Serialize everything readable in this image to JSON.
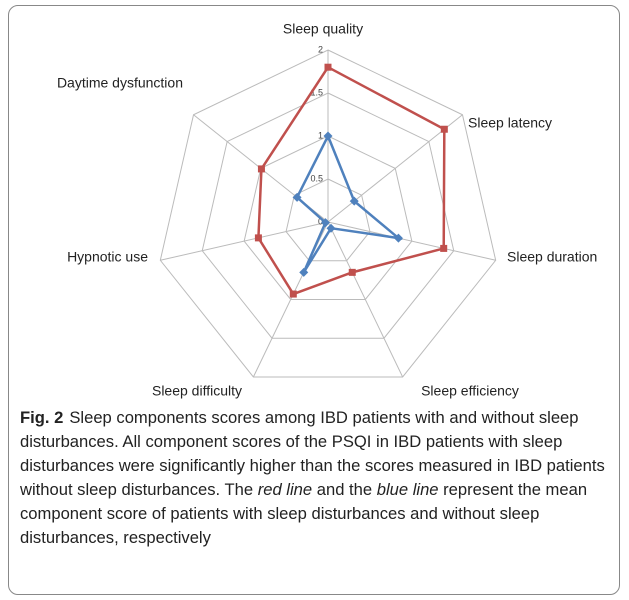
{
  "chart_data": {
    "type": "radar",
    "categories": [
      "Sleep quality",
      "Sleep latency",
      "Sleep duration",
      "Sleep efficiency",
      "Sleep difficulty",
      "Hypnotic use",
      "Daytime dysfunction"
    ],
    "series": [
      {
        "color": "#c0504d",
        "values": [
          1.8,
          1.73,
          1.38,
          0.65,
          0.93,
          0.83,
          0.99
        ]
      },
      {
        "color": "#4f81bd",
        "values": [
          1.0,
          0.39,
          0.84,
          0.08,
          0.65,
          0.03,
          0.46
        ]
      }
    ],
    "ylim": [
      0,
      2
    ],
    "yticks": [
      0,
      0.5,
      1,
      1.5,
      2
    ],
    "grid": true
  },
  "caption": {
    "label": "Fig. 2",
    "parts": [
      "Sleep components scores among IBD patients with and without sleep disturbances. All component scores of the PSQI in IBD patients with sleep disturbances were significantly higher than the scores measured in IBD patients without sleep disturbances. The ",
      "red line",
      " and the ",
      "blue line",
      " represent the mean component score of patients with sleep disturbances and without sleep disturbances, respectively"
    ]
  }
}
